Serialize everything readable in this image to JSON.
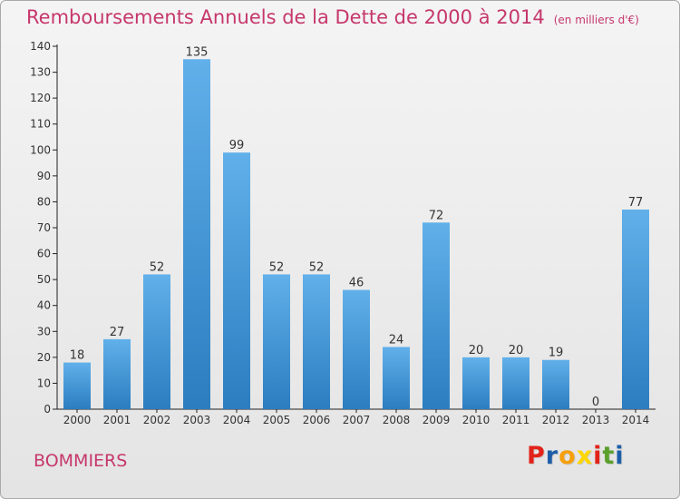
{
  "header": {
    "title": "Remboursements Annuels de la Dette de 2000 à 2014",
    "unit": "(en milliers d'€)"
  },
  "footer": {
    "commune": "BOMMIERS",
    "brand": "Proxiti",
    "brand_colors": [
      "#e2231a",
      "#1d5ea8",
      "#f5a00c",
      "#ffd700",
      "#e2231a",
      "#5aa02c",
      "#1d5ea8"
    ]
  },
  "colors": {
    "title": "#c6376b",
    "bar_top": "#61b0ea",
    "bar_bottom": "#2b7dc0"
  },
  "chart_data": {
    "type": "bar",
    "categories": [
      "2000",
      "2001",
      "2002",
      "2003",
      "2004",
      "2005",
      "2006",
      "2007",
      "2008",
      "2009",
      "2010",
      "2011",
      "2012",
      "2013",
      "2014"
    ],
    "values": [
      18,
      27,
      52,
      135,
      99,
      52,
      52,
      46,
      24,
      72,
      20,
      20,
      19,
      0,
      77
    ],
    "data_labels": [
      "18",
      "27",
      "52",
      "135",
      "99",
      "52",
      "52",
      "46",
      "24",
      "72",
      "20",
      "20",
      "19",
      "0",
      "77"
    ],
    "y_ticks": [
      "0",
      "10",
      "20",
      "30",
      "40",
      "50",
      "60",
      "70",
      "80",
      "90",
      "100",
      "110",
      "120",
      "130",
      "140"
    ],
    "ylim": [
      0,
      140
    ],
    "grid": false
  }
}
